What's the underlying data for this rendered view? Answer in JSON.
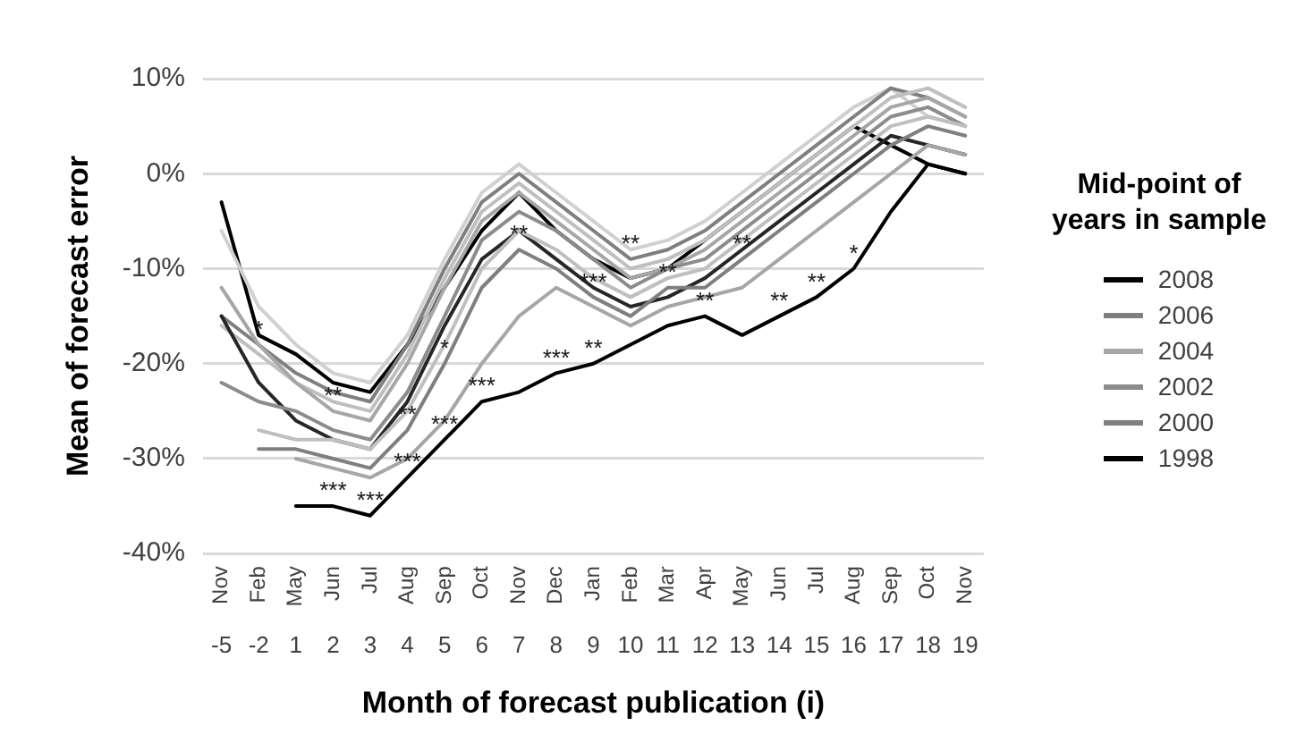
{
  "chart_data": {
    "type": "line",
    "categories": [
      "Nov -5",
      "Feb -2",
      "May 1",
      "Jun 2",
      "Jul 3",
      "Aug 4",
      "Sep 5",
      "Oct 6",
      "Nov 7",
      "Dec 8",
      "Jan 9",
      "Feb 10",
      "Mar 11",
      "Apr 12",
      "May 13",
      "Jun 14",
      "Jul 15",
      "Aug 16",
      "Sep 17",
      "Oct 18",
      "Nov 19"
    ],
    "ylim": [
      -40,
      10
    ],
    "yticks": [
      {
        "value": -40,
        "label": "-40%"
      },
      {
        "value": -30,
        "label": "-30%"
      },
      {
        "value": -20,
        "label": "-20%"
      },
      {
        "value": -10,
        "label": "-10%"
      },
      {
        "value": 0,
        "label": "0%"
      },
      {
        "value": 10,
        "label": "10%"
      }
    ],
    "ylabel": "Mean of forecast error",
    "xlabel": "Month of forecast publication (i)",
    "legend_title": "Mid-point of years in sample",
    "legend": "right",
    "grid": "y",
    "series": [
      {
        "name": "1998",
        "color": "#000000",
        "values": [
          null,
          null,
          -35,
          -35,
          -36,
          -32,
          -28,
          -24,
          -23,
          -21,
          -20,
          -18,
          -16,
          -15,
          -17,
          -15,
          -13,
          -10,
          -4,
          1,
          0
        ]
      },
      {
        "color": "#a6a6a6",
        "values": [
          null,
          null,
          -30,
          -31,
          -32,
          -30,
          -26,
          -20,
          -15,
          -12,
          -14,
          -16,
          -14,
          -13,
          -12,
          -9,
          -6,
          -3,
          0,
          3,
          2
        ]
      },
      {
        "name": "2000",
        "color": "#7f7f7f",
        "values": [
          null,
          -29,
          -29,
          -30,
          -31,
          -27,
          -20,
          -12,
          -8,
          -10,
          -13,
          -15,
          -12,
          -12,
          -9,
          -6,
          -3,
          0,
          3,
          5,
          4
        ]
      },
      {
        "color": "#bfbfbf",
        "values": [
          null,
          -27,
          -28,
          -28,
          -29,
          -25,
          -18,
          -10,
          -6,
          -8,
          -11,
          -13,
          -11,
          -10,
          -7,
          -4,
          -1,
          2,
          5,
          6,
          5
        ]
      },
      {
        "name": "2002",
        "color": "#8c8c8c",
        "values": [
          -22,
          -24,
          -25,
          -27,
          -28,
          -23,
          -15,
          -7,
          -4,
          -6,
          -9,
          -12,
          -10,
          -9,
          -6,
          -3,
          0,
          3,
          6,
          7,
          5
        ]
      },
      {
        "color": "#262626",
        "values": [
          -15,
          -22,
          -26,
          -28,
          -29,
          -24,
          -16,
          -9,
          -6,
          -9,
          -12,
          -14,
          -13,
          -11,
          -8,
          -5,
          -2,
          1,
          4,
          3,
          2
        ]
      },
      {
        "name": "2004",
        "color": "#a6a6a6",
        "values": [
          -12,
          -18,
          -22,
          -25,
          -26,
          -20,
          -12,
          -5,
          -2,
          -5,
          -8,
          -11,
          -10,
          -8,
          -5,
          -2,
          1,
          4,
          7,
          8,
          6
        ]
      },
      {
        "color": "#bfbfbf",
        "values": [
          -16,
          -19,
          -22,
          -24,
          -25,
          -19,
          -11,
          -4,
          -1,
          -4,
          -7,
          -10,
          -9,
          -7,
          -4,
          -1,
          2,
          5,
          8,
          9,
          7
        ]
      },
      {
        "name": "2006",
        "color": "#7f7f7f",
        "values": [
          -15,
          -18,
          -21,
          -23,
          -24,
          -18,
          -10,
          -3,
          0,
          -3,
          -6,
          -9,
          -8,
          -6,
          -3,
          0,
          3,
          6,
          9,
          8,
          6
        ]
      },
      {
        "color": "#d0d0d0",
        "values": [
          -6,
          -14,
          -18,
          -21,
          -22,
          -17,
          -9,
          -2,
          1,
          -2,
          -5,
          -8,
          -7,
          -5,
          -2,
          1,
          4,
          7,
          9,
          6,
          5
        ]
      },
      {
        "name": "2008",
        "color": "#000000",
        "values": [
          -3,
          -17,
          -19,
          -22,
          -23,
          -18,
          -12,
          -6,
          -2,
          -6,
          -9,
          -11,
          -10,
          -7,
          -4,
          -1,
          2,
          5,
          3,
          1,
          0
        ]
      }
    ],
    "annotations": [
      {
        "text": "***",
        "x": "Jun 2",
        "y": -35
      },
      {
        "text": "***",
        "x": "Jul 3",
        "y": -36
      },
      {
        "text": "***",
        "x": "Aug 4",
        "y": -32
      },
      {
        "text": "***",
        "x": "Sep 5",
        "y": -28
      },
      {
        "text": "***",
        "x": "Oct 6",
        "y": -24
      },
      {
        "text": "***",
        "x": "Dec 8",
        "y": -21
      },
      {
        "text": "**",
        "x": "Jan 9",
        "y": -20
      },
      {
        "text": "**",
        "x": "Apr 12",
        "y": -15
      },
      {
        "text": "**",
        "x": "Jun 14",
        "y": -15
      },
      {
        "text": "**",
        "x": "Jul 15",
        "y": -13
      },
      {
        "text": "*",
        "x": "Aug 16",
        "y": -10
      },
      {
        "text": "*",
        "x": "Feb -2",
        "y": -18
      },
      {
        "text": "**",
        "x": "Jun 2",
        "y": -25
      },
      {
        "text": "**",
        "x": "Aug 4",
        "y": -27
      },
      {
        "text": "*",
        "x": "Sep 5",
        "y": -20
      },
      {
        "text": "**",
        "x": "Nov 7",
        "y": -8
      },
      {
        "text": "***",
        "x": "Jan 9",
        "y": -13
      },
      {
        "text": "**",
        "x": "Feb 10",
        "y": -9
      },
      {
        "text": "**",
        "x": "Mar 11",
        "y": -12
      },
      {
        "text": "**",
        "x": "May 13",
        "y": -9
      }
    ]
  }
}
